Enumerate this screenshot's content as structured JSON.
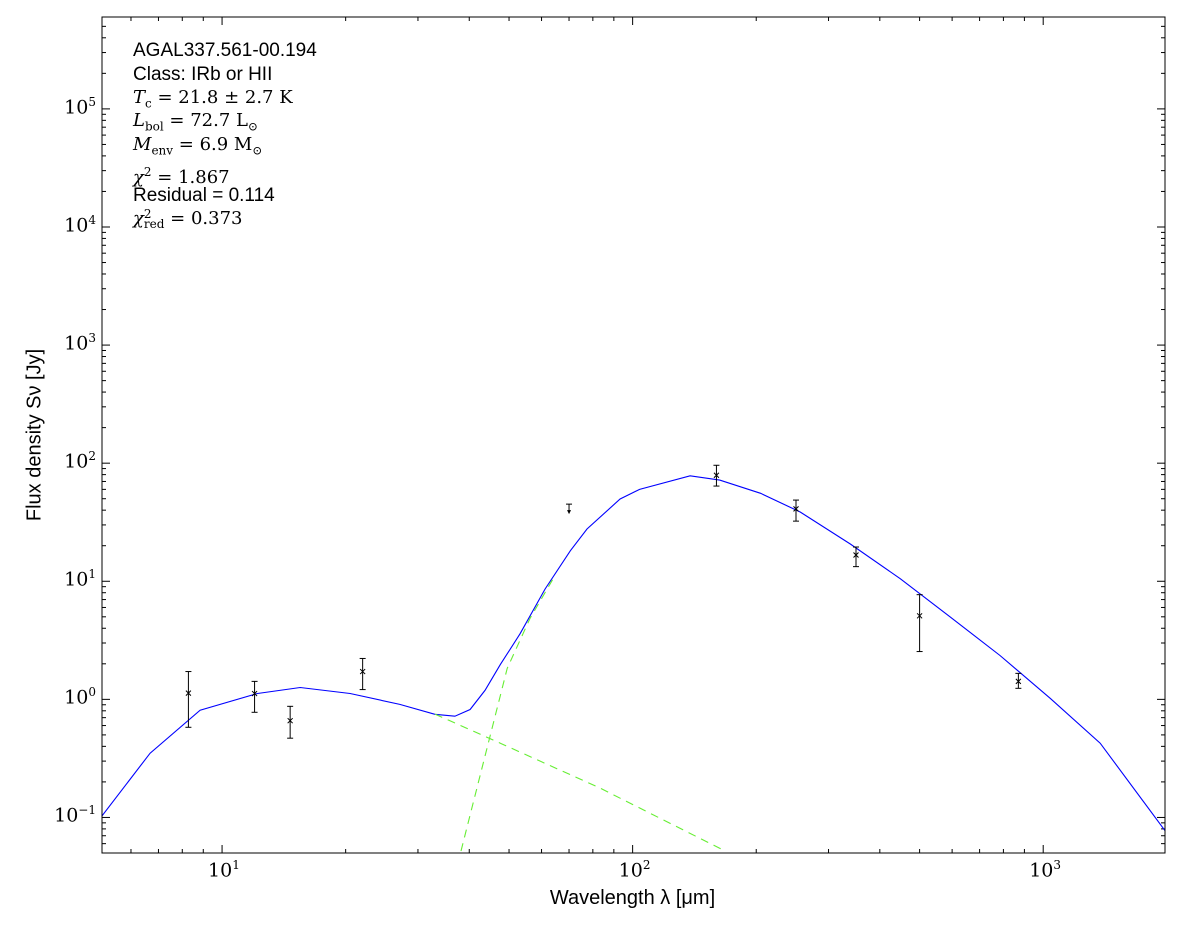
{
  "chart_data": {
    "type": "scatter",
    "xlabel": "Wavelength λ [μm]",
    "ylabel": "Flux density Sν [Jy]",
    "xscale": "log",
    "yscale": "log",
    "xlim": [
      5.1,
      1980
    ],
    "ylim": [
      0.05,
      600000
    ],
    "grid": false,
    "x_ticks": [
      {
        "base": "10",
        "exp": "1",
        "value": 10
      },
      {
        "base": "10",
        "exp": "2",
        "value": 100
      },
      {
        "base": "10",
        "exp": "3",
        "value": 1000
      }
    ],
    "y_ticks": [
      {
        "base": "10",
        "exp": "−1",
        "value": 0.1
      },
      {
        "base": "10",
        "exp": "0",
        "value": 1
      },
      {
        "base": "10",
        "exp": "1",
        "value": 10
      },
      {
        "base": "10",
        "exp": "2",
        "value": 100
      },
      {
        "base": "10",
        "exp": "3",
        "value": 1000
      },
      {
        "base": "10",
        "exp": "4",
        "value": 10000
      },
      {
        "base": "10",
        "exp": "5",
        "value": 100000
      }
    ],
    "observations": [
      {
        "x": 8.28,
        "y": 1.13,
        "ylo": 0.58,
        "yhi": 1.72
      },
      {
        "x": 12,
        "y": 1.12,
        "ylo": 0.777,
        "yhi": 1.42
      },
      {
        "x": 14.65,
        "y": 0.66,
        "ylo": 0.469,
        "yhi": 0.873
      },
      {
        "x": 22,
        "y": 1.72,
        "ylo": 1.21,
        "yhi": 2.22
      },
      {
        "x": 160,
        "y": 79,
        "ylo": 64,
        "yhi": 96
      },
      {
        "x": 250,
        "y": 41,
        "ylo": 32.3,
        "yhi": 48.7
      },
      {
        "x": 350,
        "y": 16.7,
        "ylo": 13.3,
        "yhi": 19.5
      },
      {
        "x": 500,
        "y": 5.1,
        "ylo": 2.54,
        "yhi": 7.7
      },
      {
        "x": 870,
        "y": 1.42,
        "ylo": 1.24,
        "yhi": 1.66
      }
    ],
    "upper_limits": [
      {
        "x": 70,
        "y": 45
      }
    ],
    "series": [
      {
        "style": "solid",
        "color": "#0000ff",
        "x": [
          5.1,
          6.68,
          8.84,
          12.2,
          15.5,
          20.5,
          27.1,
          33.0,
          36.9,
          40.2,
          43.7,
          47.6,
          53.2,
          61.2,
          70.5,
          77.4,
          93.2,
          104,
          138,
          163,
          205,
          256,
          339,
          449,
          593,
          785,
          1040,
          1377,
          1982
        ],
        "y": [
          0.103,
          0.35,
          0.81,
          1.12,
          1.26,
          1.12,
          0.907,
          0.747,
          0.72,
          0.82,
          1.19,
          1.97,
          3.6,
          8.6,
          18.1,
          27.7,
          49.7,
          60,
          78.1,
          71.9,
          55.6,
          38.6,
          20.7,
          10.5,
          5.0,
          2.35,
          1.02,
          0.425,
          0.077
        ]
      },
      {
        "style": "dashed",
        "color": "#66ee33",
        "x": [
          33.0,
          47.6,
          83.4,
          168
        ],
        "y": [
          0.75,
          0.425,
          0.177,
          0.052
        ]
      },
      {
        "style": "dashed",
        "color": "#66ee33",
        "x": [
          38.2,
          45.0,
          49.5,
          56.2,
          64
        ],
        "y": [
          0.052,
          0.497,
          1.83,
          4.83,
          10.5
        ]
      }
    ]
  },
  "annotations": {
    "source": "AGAL337.561-00.194",
    "class": "Class: IRb or HII",
    "tc": {
      "sym": "T",
      "sub": "c",
      "rest": " = 21.8 ± 2.7 K"
    },
    "lbol": {
      "sym": "L",
      "sub": "bol",
      "rest": " = 72.7 L",
      "sun": "⊙"
    },
    "menv": {
      "sym": "M",
      "sub": "env",
      "rest": " = 6.9 M",
      "sun": "⊙"
    },
    "chi2": {
      "sym": "χ",
      "sup": "2",
      "rest": " = 1.867"
    },
    "residual": "Residual = 0.114",
    "chi2red": {
      "sym": "χ",
      "sup": "2",
      "sub": "red",
      "rest": " = 0.373"
    }
  }
}
